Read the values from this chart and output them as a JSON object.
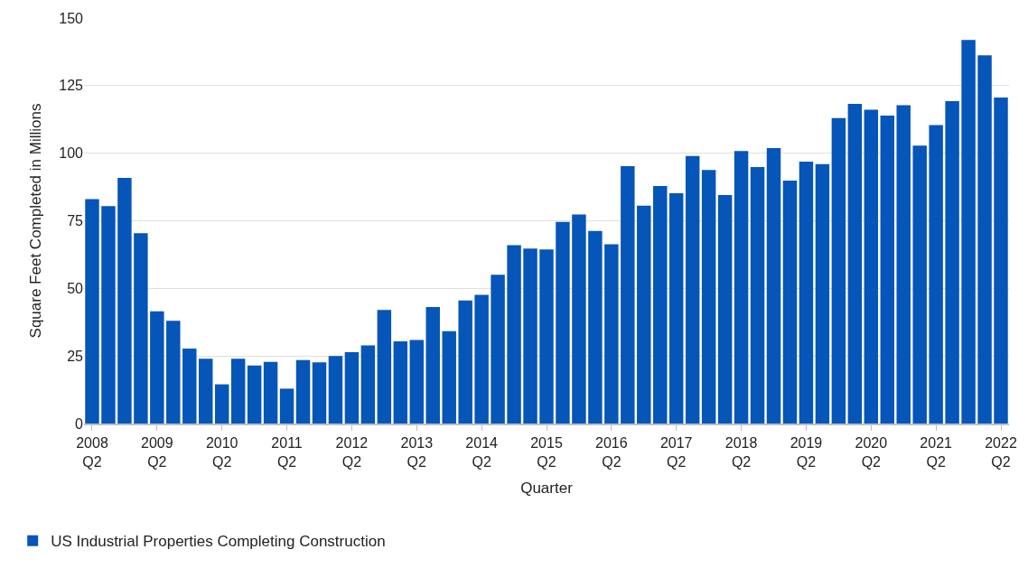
{
  "chart_data": {
    "type": "bar",
    "xlabel": "Quarter",
    "ylabel": "Square Feet Completed in Millions",
    "categories": [
      "2008 Q2",
      null,
      null,
      null,
      "2009 Q2",
      null,
      null,
      null,
      "2010 Q2",
      null,
      null,
      null,
      "2011 Q2",
      null,
      null,
      null,
      "2012 Q2",
      null,
      null,
      null,
      "2013 Q2",
      null,
      null,
      null,
      "2014 Q2",
      null,
      null,
      null,
      "2015 Q2",
      null,
      null,
      null,
      "2016 Q2",
      null,
      null,
      null,
      "2017 Q2",
      null,
      null,
      null,
      "2018 Q2",
      null,
      null,
      null,
      "2019 Q2",
      null,
      null,
      null,
      "2020 Q2",
      null,
      null,
      null,
      "2021 Q2",
      null,
      null,
      null,
      "2022 Q2"
    ],
    "series": [
      {
        "name": "US Industrial Properties Completing Construction",
        "color": "#0655b8",
        "values": [
          83.0,
          80.4,
          90.9,
          70.4,
          41.5,
          38.0,
          27.7,
          24.0,
          14.5,
          24.0,
          21.5,
          22.8,
          12.9,
          23.5,
          22.6,
          25.0,
          26.4,
          28.9,
          42.0,
          30.4,
          30.9,
          43.1,
          34.2,
          45.5,
          47.6,
          55.0,
          66.0,
          64.7,
          64.4,
          74.6,
          77.3,
          71.2,
          66.3,
          95.2,
          80.6,
          87.9,
          85.2,
          99.0,
          93.8,
          84.5,
          100.8,
          94.9,
          101.9,
          89.9,
          96.9,
          96.0,
          113.0,
          118.3,
          116.1,
          113.9,
          117.8,
          102.8,
          110.4,
          119.3,
          141.9,
          136.2,
          120.6
        ]
      }
    ],
    "ylim": [
      0,
      150
    ],
    "yticks": [
      0,
      25,
      50,
      75,
      100,
      125,
      150
    ],
    "grid": "y",
    "legend": "bottom left"
  }
}
